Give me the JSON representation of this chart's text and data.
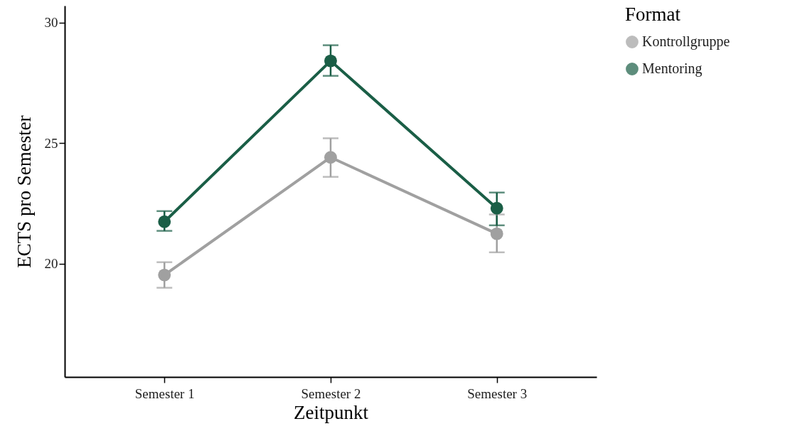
{
  "chart_data": {
    "type": "line",
    "xlabel": "Zeitpunkt",
    "ylabel": "ECTS pro Semester",
    "legend_title": "Format",
    "categories": [
      "Semester 1",
      "Semester 2",
      "Semester 3"
    ],
    "series": [
      {
        "name": "Kontrollgruppe",
        "color": "#a0a0a0",
        "values": [
          19.53,
          24.41,
          21.24
        ],
        "errors": [
          [
            19.0,
            20.06
          ],
          [
            23.6,
            25.2
          ],
          [
            20.47,
            22.04
          ]
        ]
      },
      {
        "name": "Mentoring",
        "color": "#1a5e46",
        "values": [
          21.74,
          28.41,
          22.3
        ],
        "errors": [
          [
            21.36,
            22.18
          ],
          [
            27.79,
            29.06
          ],
          [
            21.59,
            22.95
          ]
        ]
      }
    ],
    "ylim": [
      15.3,
      30.7
    ],
    "yticks": [
      20,
      25,
      30
    ],
    "grid": false,
    "legend": "right",
    "marker": "circle",
    "line_style": "solid"
  }
}
